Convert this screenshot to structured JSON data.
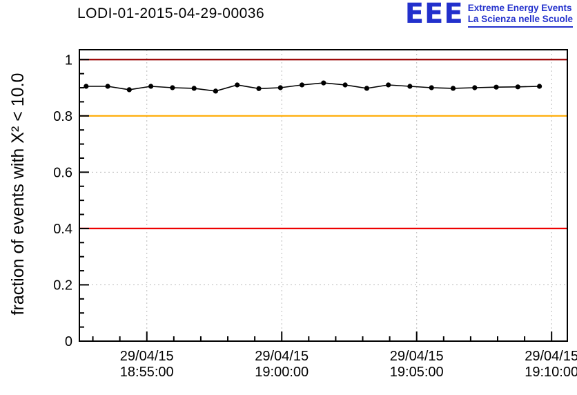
{
  "header": {
    "title": "LODI-01-2015-04-29-00036",
    "logo": {
      "acronym": "EEE",
      "line1": "Extreme Energy Events",
      "line2": "La Scienza nelle Scuole",
      "color": "#2230cc"
    }
  },
  "chart_data": {
    "type": "line",
    "title": "LODI-01-2015-04-29-00036",
    "xlabel": "",
    "ylabel": "fraction of events with X² < 10.0",
    "ylim": [
      0,
      1.035
    ],
    "xlim_seconds_from_1850": [
      150,
      1235
    ],
    "grid": true,
    "legend": "none",
    "axis_color": "#000000",
    "grid_color": "#b9b9b9",
    "y_ticks": [
      0,
      0.2,
      0.4,
      0.6,
      0.8,
      1
    ],
    "y_tick_labels": [
      "0",
      "0.2",
      "0.4",
      "0.6",
      "0.8",
      "1"
    ],
    "y_minor_step": 0.05,
    "x_ticks_seconds": [
      300,
      600,
      900,
      1200
    ],
    "x_minor_step_seconds": 60,
    "x_tick_labels": [
      [
        "29/04/15",
        "18:55:00"
      ],
      [
        "29/04/15",
        "19:00:00"
      ],
      [
        "29/04/15",
        "19:05:00"
      ],
      [
        "29/04/15",
        "19:10:00"
      ]
    ],
    "reference_lines": [
      {
        "name": "upper-limit-line",
        "y": 1.0,
        "color": "#990000"
      },
      {
        "name": "warning-line",
        "y": 0.8,
        "color": "#ffaa00"
      },
      {
        "name": "lower-limit-line",
        "y": 0.4,
        "color": "#ee0000"
      }
    ],
    "series": [
      {
        "name": "fraction-of-good-events",
        "color": "#000000",
        "marker": "circle",
        "points": [
          [
            165,
            0.905
          ],
          [
            213,
            0.905
          ],
          [
            261,
            0.893
          ],
          [
            309,
            0.905
          ],
          [
            357,
            0.9
          ],
          [
            405,
            0.898
          ],
          [
            453,
            0.888
          ],
          [
            501,
            0.91
          ],
          [
            549,
            0.897
          ],
          [
            597,
            0.9
          ],
          [
            645,
            0.91
          ],
          [
            693,
            0.917
          ],
          [
            741,
            0.91
          ],
          [
            789,
            0.898
          ],
          [
            837,
            0.91
          ],
          [
            885,
            0.905
          ],
          [
            933,
            0.9
          ],
          [
            981,
            0.898
          ],
          [
            1029,
            0.9
          ],
          [
            1077,
            0.902
          ],
          [
            1125,
            0.903
          ],
          [
            1173,
            0.905
          ]
        ]
      }
    ]
  }
}
